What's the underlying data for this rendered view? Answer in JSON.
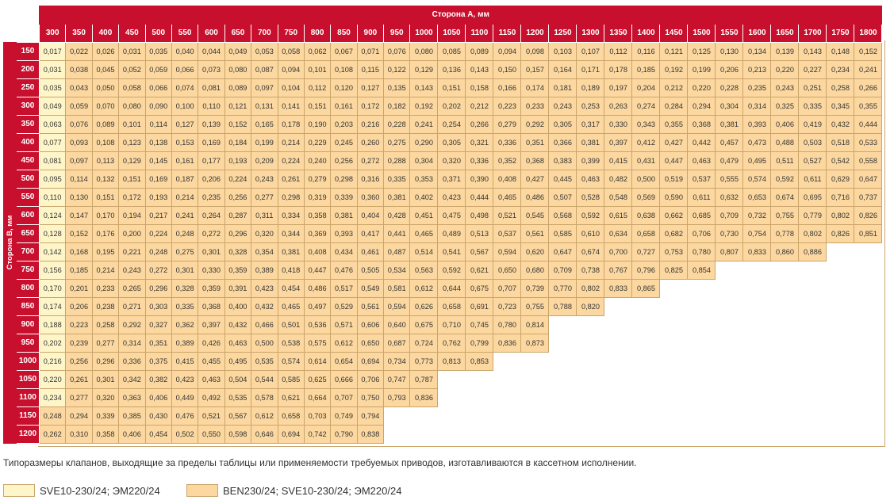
{
  "header": {
    "col_title": "Сторона А, мм",
    "row_title": "Сторона B, мм"
  },
  "columns": [
    "300",
    "350",
    "400",
    "450",
    "500",
    "550",
    "600",
    "650",
    "700",
    "750",
    "800",
    "850",
    "900",
    "950",
    "1000",
    "1050",
    "1100",
    "1150",
    "1200",
    "1250",
    "1300",
    "1350",
    "1400",
    "1450",
    "1500",
    "1550",
    "1600",
    "1650",
    "1700",
    "1750",
    "1800"
  ],
  "rows": [
    {
      "b": "150",
      "light": 1,
      "values": [
        "0,017",
        "0,022",
        "0,026",
        "0,031",
        "0,035",
        "0,040",
        "0,044",
        "0,049",
        "0,053",
        "0,058",
        "0,062",
        "0,067",
        "0,071",
        "0,076",
        "0,080",
        "0,085",
        "0,089",
        "0,094",
        "0,098",
        "0,103",
        "0,107",
        "0,112",
        "0,116",
        "0,121",
        "0,125",
        "0,130",
        "0,134",
        "0,139",
        "0,143",
        "0,148",
        "0,152"
      ]
    },
    {
      "b": "200",
      "light": 1,
      "values": [
        "0,031",
        "0,038",
        "0,045",
        "0,052",
        "0,059",
        "0,066",
        "0,073",
        "0,080",
        "0,087",
        "0,094",
        "0,101",
        "0,108",
        "0,115",
        "0,122",
        "0,129",
        "0,136",
        "0,143",
        "0,150",
        "0,157",
        "0,164",
        "0,171",
        "0,178",
        "0,185",
        "0,192",
        "0,199",
        "0,206",
        "0,213",
        "0,220",
        "0,227",
        "0,234",
        "0,241"
      ]
    },
    {
      "b": "250",
      "light": 1,
      "values": [
        "0,035",
        "0,043",
        "0,050",
        "0,058",
        "0,066",
        "0,074",
        "0,081",
        "0,089",
        "0,097",
        "0,104",
        "0,112",
        "0,120",
        "0,127",
        "0,135",
        "0,143",
        "0,151",
        "0,158",
        "0,166",
        "0,174",
        "0,181",
        "0,189",
        "0,197",
        "0,204",
        "0,212",
        "0,220",
        "0,228",
        "0,235",
        "0,243",
        "0,251",
        "0,258",
        "0,266"
      ]
    },
    {
      "b": "300",
      "light": 1,
      "values": [
        "0,049",
        "0,059",
        "0,070",
        "0,080",
        "0,090",
        "0,100",
        "0,110",
        "0,121",
        "0,131",
        "0,141",
        "0,151",
        "0,161",
        "0,172",
        "0,182",
        "0,192",
        "0,202",
        "0,212",
        "0,223",
        "0,233",
        "0,243",
        "0,253",
        "0,263",
        "0,274",
        "0,284",
        "0,294",
        "0,304",
        "0,314",
        "0,325",
        "0,335",
        "0,345",
        "0,355"
      ]
    },
    {
      "b": "350",
      "light": 1,
      "values": [
        "0,063",
        "0,076",
        "0,089",
        "0,101",
        "0,114",
        "0,127",
        "0,139",
        "0,152",
        "0,165",
        "0,178",
        "0,190",
        "0,203",
        "0,216",
        "0,228",
        "0,241",
        "0,254",
        "0,266",
        "0,279",
        "0,292",
        "0,305",
        "0,317",
        "0,330",
        "0,343",
        "0,355",
        "0,368",
        "0,381",
        "0,393",
        "0,406",
        "0,419",
        "0,432",
        "0,444"
      ]
    },
    {
      "b": "400",
      "light": 1,
      "values": [
        "0,077",
        "0,093",
        "0,108",
        "0,123",
        "0,138",
        "0,153",
        "0,169",
        "0,184",
        "0,199",
        "0,214",
        "0,229",
        "0,245",
        "0,260",
        "0,275",
        "0,290",
        "0,305",
        "0,321",
        "0,336",
        "0,351",
        "0,366",
        "0,381",
        "0,397",
        "0,412",
        "0,427",
        "0,442",
        "0,457",
        "0,473",
        "0,488",
        "0,503",
        "0,518",
        "0,533"
      ]
    },
    {
      "b": "450",
      "light": 1,
      "values": [
        "0,081",
        "0,097",
        "0,113",
        "0,129",
        "0,145",
        "0,161",
        "0,177",
        "0,193",
        "0,209",
        "0,224",
        "0,240",
        "0,256",
        "0,272",
        "0,288",
        "0,304",
        "0,320",
        "0,336",
        "0,352",
        "0,368",
        "0,383",
        "0,399",
        "0,415",
        "0,431",
        "0,447",
        "0,463",
        "0,479",
        "0,495",
        "0,511",
        "0,527",
        "0,542",
        "0,558"
      ]
    },
    {
      "b": "500",
      "light": 1,
      "values": [
        "0,095",
        "0,114",
        "0,132",
        "0,151",
        "0,169",
        "0,187",
        "0,206",
        "0,224",
        "0,243",
        "0,261",
        "0,279",
        "0,298",
        "0,316",
        "0,335",
        "0,353",
        "0,371",
        "0,390",
        "0,408",
        "0,427",
        "0,445",
        "0,463",
        "0,482",
        "0,500",
        "0,519",
        "0,537",
        "0,555",
        "0,574",
        "0,592",
        "0,611",
        "0,629",
        "0,647"
      ]
    },
    {
      "b": "550",
      "light": 1,
      "values": [
        "0,110",
        "0,130",
        "0,151",
        "0,172",
        "0,193",
        "0,214",
        "0,235",
        "0,256",
        "0,277",
        "0,298",
        "0,319",
        "0,339",
        "0,360",
        "0,381",
        "0,402",
        "0,423",
        "0,444",
        "0,465",
        "0,486",
        "0,507",
        "0,528",
        "0,548",
        "0,569",
        "0,590",
        "0,611",
        "0,632",
        "0,653",
        "0,674",
        "0,695",
        "0,716",
        "0,737"
      ]
    },
    {
      "b": "600",
      "light": 1,
      "values": [
        "0,124",
        "0,147",
        "0,170",
        "0,194",
        "0,217",
        "0,241",
        "0,264",
        "0,287",
        "0,311",
        "0,334",
        "0,358",
        "0,381",
        "0,404",
        "0,428",
        "0,451",
        "0,475",
        "0,498",
        "0,521",
        "0,545",
        "0,568",
        "0,592",
        "0,615",
        "0,638",
        "0,662",
        "0,685",
        "0,709",
        "0,732",
        "0,755",
        "0,779",
        "0,802",
        "0,826"
      ]
    },
    {
      "b": "650",
      "light": 1,
      "values": [
        "0,128",
        "0,152",
        "0,176",
        "0,200",
        "0,224",
        "0,248",
        "0,272",
        "0,296",
        "0,320",
        "0,344",
        "0,369",
        "0,393",
        "0,417",
        "0,441",
        "0,465",
        "0,489",
        "0,513",
        "0,537",
        "0,561",
        "0,585",
        "0,610",
        "0,634",
        "0,658",
        "0,682",
        "0,706",
        "0,730",
        "0,754",
        "0,778",
        "0,802",
        "0,826",
        "0,851"
      ]
    },
    {
      "b": "700",
      "light": 1,
      "values": [
        "0,142",
        "0,168",
        "0,195",
        "0,221",
        "0,248",
        "0,275",
        "0,301",
        "0,328",
        "0,354",
        "0,381",
        "0,408",
        "0,434",
        "0,461",
        "0,487",
        "0,514",
        "0,541",
        "0,567",
        "0,594",
        "0,620",
        "0,647",
        "0,674",
        "0,700",
        "0,727",
        "0,753",
        "0,780",
        "0,807",
        "0,833",
        "0,860",
        "0,886"
      ]
    },
    {
      "b": "750",
      "light": 1,
      "values": [
        "0,156",
        "0,185",
        "0,214",
        "0,243",
        "0,272",
        "0,301",
        "0,330",
        "0,359",
        "0,389",
        "0,418",
        "0,447",
        "0,476",
        "0,505",
        "0,534",
        "0,563",
        "0,592",
        "0,621",
        "0,650",
        "0,680",
        "0,709",
        "0,738",
        "0,767",
        "0,796",
        "0,825",
        "0,854"
      ]
    },
    {
      "b": "800",
      "light": 1,
      "values": [
        "0,170",
        "0,201",
        "0,233",
        "0,265",
        "0,296",
        "0,328",
        "0,359",
        "0,391",
        "0,423",
        "0,454",
        "0,486",
        "0,517",
        "0,549",
        "0,581",
        "0,612",
        "0,644",
        "0,675",
        "0,707",
        "0,739",
        "0,770",
        "0,802",
        "0,833",
        "0,865"
      ]
    },
    {
      "b": "850",
      "light": 1,
      "values": [
        "0,174",
        "0,206",
        "0,238",
        "0,271",
        "0,303",
        "0,335",
        "0,368",
        "0,400",
        "0,432",
        "0,465",
        "0,497",
        "0,529",
        "0,561",
        "0,594",
        "0,626",
        "0,658",
        "0,691",
        "0,723",
        "0,755",
        "0,788",
        "0,820"
      ]
    },
    {
      "b": "900",
      "light": 1,
      "values": [
        "0,188",
        "0,223",
        "0,258",
        "0,292",
        "0,327",
        "0,362",
        "0,397",
        "0,432",
        "0,466",
        "0,501",
        "0,536",
        "0,571",
        "0,606",
        "0,640",
        "0,675",
        "0,710",
        "0,745",
        "0,780",
        "0,814"
      ]
    },
    {
      "b": "950",
      "light": 1,
      "values": [
        "0,202",
        "0,239",
        "0,277",
        "0,314",
        "0,351",
        "0,389",
        "0,426",
        "0,463",
        "0,500",
        "0,538",
        "0,575",
        "0,612",
        "0,650",
        "0,687",
        "0,724",
        "0,762",
        "0,799",
        "0,836",
        "0,873"
      ]
    },
    {
      "b": "1000",
      "light": 1,
      "values": [
        "0,216",
        "0,256",
        "0,296",
        "0,336",
        "0,375",
        "0,415",
        "0,455",
        "0,495",
        "0,535",
        "0,574",
        "0,614",
        "0,654",
        "0,694",
        "0,734",
        "0,773",
        "0,813",
        "0,853"
      ]
    },
    {
      "b": "1050",
      "light": 1,
      "values": [
        "0,220",
        "0,261",
        "0,301",
        "0,342",
        "0,382",
        "0,423",
        "0,463",
        "0,504",
        "0,544",
        "0,585",
        "0,625",
        "0,666",
        "0,706",
        "0,747",
        "0,787"
      ]
    },
    {
      "b": "1100",
      "light": 1,
      "values": [
        "0,234",
        "0,277",
        "0,320",
        "0,363",
        "0,406",
        "0,449",
        "0,492",
        "0,535",
        "0,578",
        "0,621",
        "0,664",
        "0,707",
        "0,750",
        "0,793",
        "0,836"
      ]
    },
    {
      "b": "1150",
      "light": 0,
      "values": [
        "0,248",
        "0,294",
        "0,339",
        "0,385",
        "0,430",
        "0,476",
        "0,521",
        "0,567",
        "0,612",
        "0,658",
        "0,703",
        "0,749",
        "0,794"
      ]
    },
    {
      "b": "1200",
      "light": 0,
      "values": [
        "0,262",
        "0,310",
        "0,358",
        "0,406",
        "0,454",
        "0,502",
        "0,550",
        "0,598",
        "0,646",
        "0,694",
        "0,742",
        "0,790",
        "0,838"
      ]
    }
  ],
  "note": "Типоразмеры клапанов, выходящие за пределы таблицы или применяемости требуемых приводов, изготавливаются в кассетном исполнении.",
  "legend": [
    {
      "label": "SVE10-230/24; ЭМ220/24",
      "color": "#fef6c8"
    },
    {
      "label": "BEN230/24; SVE10-230/24; ЭМ220/24",
      "color": "#fcd8a0"
    }
  ]
}
